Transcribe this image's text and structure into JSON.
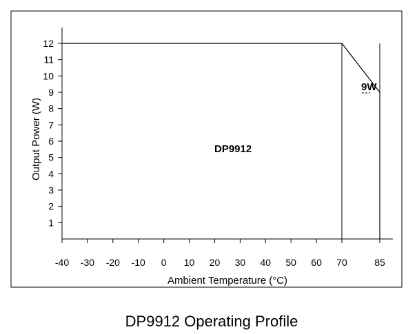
{
  "chart_data": {
    "type": "line",
    "title": "",
    "caption": "DP9912 Operating Profile",
    "xlabel": "Ambient Temperature (°C)",
    "ylabel": "Output Power (W)",
    "xlim": [
      -40,
      85
    ],
    "ylim": [
      0,
      12
    ],
    "x_ticks": [
      -40,
      -30,
      -20,
      -10,
      0,
      10,
      20,
      30,
      40,
      50,
      60,
      70,
      85
    ],
    "y_ticks": [
      1,
      2,
      3,
      4,
      5,
      6,
      7,
      8,
      9,
      10,
      11,
      12
    ],
    "grid": false,
    "series": [
      {
        "name": "DP9912",
        "x": [
          -40,
          70,
          85,
          85
        ],
        "y": [
          12,
          12,
          9,
          0
        ]
      }
    ],
    "vertical_markers": [
      70,
      85
    ],
    "annotations": [
      {
        "text": "DP9912",
        "x": 15,
        "y": 5.5
      },
      {
        "text": "9W",
        "x": 83,
        "y": 9
      }
    ],
    "line_color": "#000000"
  }
}
